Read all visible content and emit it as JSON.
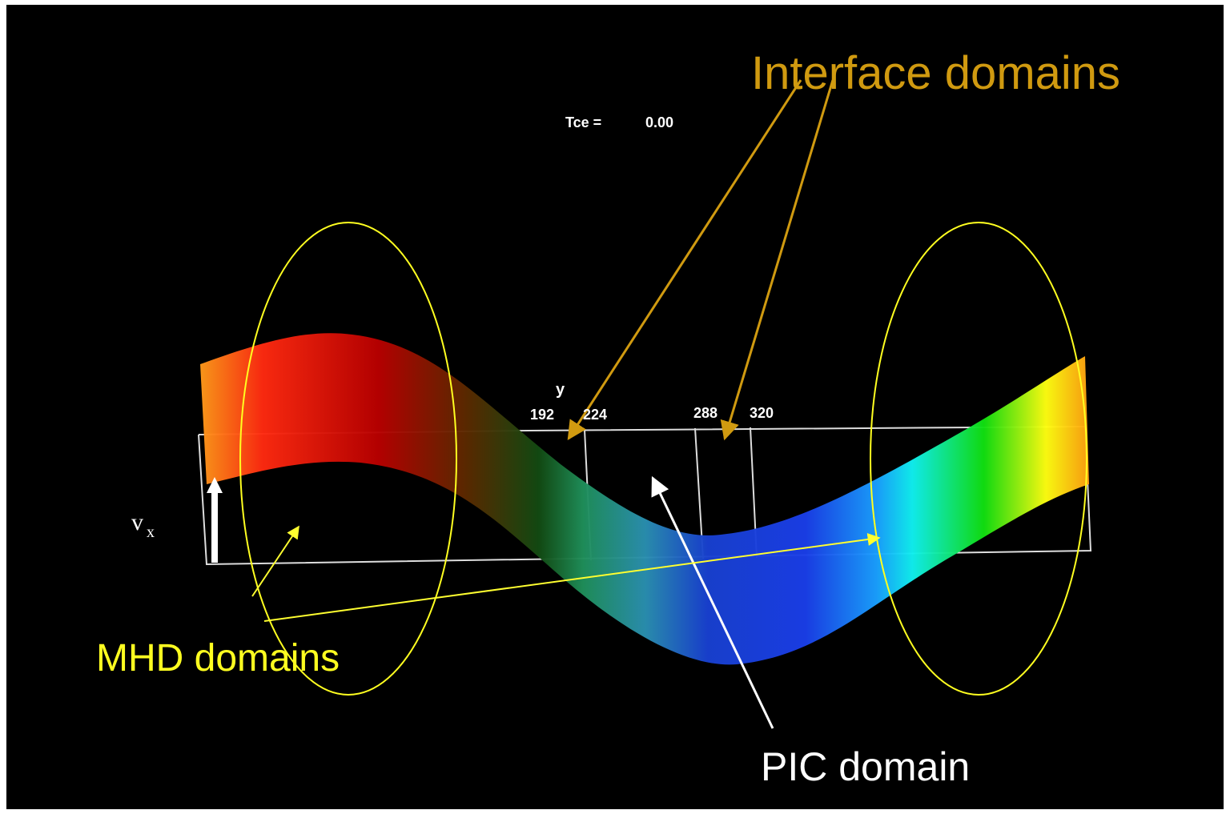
{
  "labels": {
    "interface": "Interface domains",
    "tce_label": "Tce =",
    "tce_value": "0.00",
    "axis_y": "y",
    "ticks": [
      "192",
      "224",
      "288",
      "320"
    ],
    "vx_main": "v",
    "vx_sub": "x",
    "mhd": "MHD domains",
    "pic": "PIC domain"
  }
}
